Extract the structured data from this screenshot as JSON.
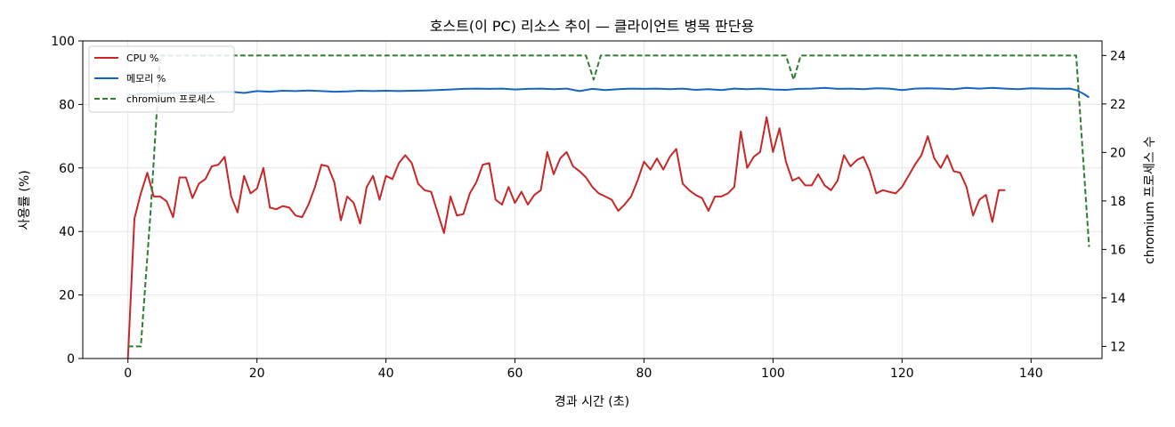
{
  "chart_data": {
    "type": "line",
    "title": "호스트(이 PC) 리소스 추이 — 클라이언트 병목 판단용",
    "xlabel": "경과 시간 (초)",
    "ylabel": "사용률 (%)",
    "y2label": "chromium 프로세스 수",
    "xlim": [
      -7,
      151
    ],
    "ylim": [
      0,
      100
    ],
    "y2lim": [
      11.5,
      24.6
    ],
    "xticks": [
      0,
      20,
      40,
      60,
      80,
      100,
      120,
      140
    ],
    "yticks": [
      0,
      20,
      40,
      60,
      80,
      100
    ],
    "y2ticks": [
      12,
      14,
      16,
      18,
      20,
      22,
      24
    ],
    "grid": true,
    "legend": "top-left",
    "series": [
      {
        "name": "CPU %",
        "axis": "left",
        "color": "#c62828",
        "style": "solid",
        "points": [
          [
            0,
            0
          ],
          [
            1,
            44
          ],
          [
            2,
            52
          ],
          [
            3,
            58.5
          ],
          [
            4,
            51
          ],
          [
            5,
            51
          ],
          [
            6,
            49.5
          ],
          [
            7,
            44.5
          ],
          [
            8,
            57
          ],
          [
            9,
            57
          ],
          [
            10,
            50.5
          ],
          [
            11,
            55
          ],
          [
            12,
            56.5
          ],
          [
            13,
            60.5
          ],
          [
            14,
            61
          ],
          [
            15,
            63.5
          ],
          [
            16,
            51
          ],
          [
            17,
            46
          ],
          [
            18,
            57.5
          ],
          [
            19,
            52
          ],
          [
            20,
            53.5
          ],
          [
            21,
            60
          ],
          [
            22,
            47.5
          ],
          [
            23,
            47
          ],
          [
            24,
            48
          ],
          [
            25,
            47.5
          ],
          [
            26,
            45
          ],
          [
            27,
            44.5
          ],
          [
            28,
            48.5
          ],
          [
            29,
            54
          ],
          [
            30,
            61
          ],
          [
            31,
            60.5
          ],
          [
            32,
            55.5
          ],
          [
            33,
            43.5
          ],
          [
            34,
            51
          ],
          [
            35,
            49
          ],
          [
            36,
            42.5
          ],
          [
            37,
            54
          ],
          [
            38,
            57.5
          ],
          [
            39,
            50
          ],
          [
            40,
            57.5
          ],
          [
            41,
            56.5
          ],
          [
            42,
            61.5
          ],
          [
            43,
            64
          ],
          [
            44,
            61.5
          ],
          [
            45,
            55
          ],
          [
            46,
            53
          ],
          [
            47,
            52.5
          ],
          [
            48,
            46
          ],
          [
            49,
            39.5
          ],
          [
            50,
            51
          ],
          [
            51,
            45
          ],
          [
            52,
            45.5
          ],
          [
            53,
            52
          ],
          [
            54,
            55.5
          ],
          [
            55,
            61
          ],
          [
            56,
            61.5
          ],
          [
            57,
            50
          ],
          [
            58,
            48.5
          ],
          [
            59,
            54
          ],
          [
            60,
            49
          ],
          [
            61,
            52.5
          ],
          [
            62,
            48.5
          ],
          [
            63,
            51.5
          ],
          [
            64,
            53
          ],
          [
            65,
            65
          ],
          [
            66,
            58
          ],
          [
            67,
            63
          ],
          [
            68,
            65
          ],
          [
            69,
            60.5
          ],
          [
            70,
            59
          ],
          [
            71,
            57
          ],
          [
            72,
            54
          ],
          [
            73,
            52
          ],
          [
            74,
            51
          ],
          [
            75,
            50
          ],
          [
            76,
            46.5
          ],
          [
            77,
            48.5
          ],
          [
            78,
            51
          ],
          [
            79,
            56
          ],
          [
            80,
            62
          ],
          [
            81,
            59.5
          ],
          [
            82,
            63
          ],
          [
            83,
            59.5
          ],
          [
            84,
            63.5
          ],
          [
            85,
            66
          ],
          [
            86,
            55
          ],
          [
            87,
            53
          ],
          [
            88,
            51.5
          ],
          [
            89,
            50.5
          ],
          [
            90,
            46.5
          ],
          [
            91,
            51
          ],
          [
            92,
            51
          ],
          [
            93,
            52
          ],
          [
            94,
            54
          ],
          [
            95,
            71.5
          ],
          [
            96,
            60
          ],
          [
            97,
            63.5
          ],
          [
            98,
            65
          ],
          [
            99,
            76
          ],
          [
            100,
            65
          ],
          [
            101,
            72.5
          ],
          [
            102,
            62
          ],
          [
            103,
            56
          ],
          [
            104,
            57
          ],
          [
            105,
            54.5
          ],
          [
            106,
            54.5
          ],
          [
            107,
            58
          ],
          [
            108,
            54.5
          ],
          [
            109,
            53
          ],
          [
            110,
            56
          ],
          [
            111,
            64
          ],
          [
            112,
            60.5
          ],
          [
            113,
            62.5
          ],
          [
            114,
            63.5
          ],
          [
            115,
            59
          ],
          [
            116,
            52
          ],
          [
            117,
            53
          ],
          [
            118,
            52.5
          ],
          [
            119,
            52
          ],
          [
            120,
            54
          ],
          [
            121,
            57.5
          ],
          [
            122,
            61
          ],
          [
            123,
            64
          ],
          [
            124,
            70
          ],
          [
            125,
            63
          ],
          [
            126,
            60
          ],
          [
            127,
            64
          ],
          [
            128,
            59
          ],
          [
            129,
            58.5
          ],
          [
            130,
            54
          ],
          [
            131,
            45
          ],
          [
            132,
            50
          ],
          [
            133,
            51.5
          ],
          [
            134,
            43
          ],
          [
            135,
            53
          ],
          [
            136,
            53
          ]
        ]
      },
      {
        "name": "메모리 %",
        "axis": "left",
        "color": "#1565c0",
        "style": "solid",
        "points": [
          [
            0,
            83
          ],
          [
            2,
            83.2
          ],
          [
            4,
            83.4
          ],
          [
            6,
            83.5
          ],
          [
            8,
            83.6
          ],
          [
            10,
            83.6
          ],
          [
            12,
            83.7
          ],
          [
            14,
            83.9
          ],
          [
            16,
            84
          ],
          [
            18,
            83.6
          ],
          [
            20,
            84.2
          ],
          [
            22,
            84
          ],
          [
            24,
            84.3
          ],
          [
            26,
            84.2
          ],
          [
            28,
            84.4
          ],
          [
            30,
            84.2
          ],
          [
            32,
            84
          ],
          [
            34,
            84.1
          ],
          [
            36,
            84.3
          ],
          [
            38,
            84.2
          ],
          [
            40,
            84.3
          ],
          [
            42,
            84.2
          ],
          [
            44,
            84.3
          ],
          [
            46,
            84.4
          ],
          [
            48,
            84.5
          ],
          [
            50,
            84.7
          ],
          [
            52,
            84.9
          ],
          [
            54,
            85
          ],
          [
            56,
            84.9
          ],
          [
            58,
            85
          ],
          [
            60,
            84.7
          ],
          [
            62,
            84.9
          ],
          [
            64,
            85
          ],
          [
            66,
            84.8
          ],
          [
            68,
            85
          ],
          [
            70,
            84.2
          ],
          [
            72,
            84.9
          ],
          [
            74,
            84.5
          ],
          [
            76,
            84.8
          ],
          [
            78,
            85
          ],
          [
            80,
            84.9
          ],
          [
            82,
            85
          ],
          [
            84,
            84.8
          ],
          [
            86,
            85
          ],
          [
            88,
            84.6
          ],
          [
            90,
            84.8
          ],
          [
            92,
            84.5
          ],
          [
            94,
            85
          ],
          [
            96,
            84.8
          ],
          [
            98,
            85
          ],
          [
            100,
            84.7
          ],
          [
            102,
            84.6
          ],
          [
            104,
            84.9
          ],
          [
            106,
            85
          ],
          [
            108,
            85.2
          ],
          [
            110,
            84.9
          ],
          [
            112,
            85
          ],
          [
            114,
            84.8
          ],
          [
            116,
            85.1
          ],
          [
            118,
            85
          ],
          [
            120,
            84.5
          ],
          [
            122,
            85
          ],
          [
            124,
            85.1
          ],
          [
            126,
            85
          ],
          [
            128,
            84.8
          ],
          [
            130,
            85.2
          ],
          [
            132,
            85
          ],
          [
            134,
            85.2
          ],
          [
            136,
            85
          ],
          [
            138,
            84.8
          ],
          [
            140,
            85.1
          ],
          [
            142,
            85
          ],
          [
            144,
            84.9
          ],
          [
            146,
            85
          ],
          [
            147,
            84.5
          ],
          [
            148,
            83.5
          ],
          [
            149,
            82.2
          ]
        ]
      },
      {
        "name": "chromium 프로세스 수",
        "legend_label": "chromium 프로세스",
        "axis": "right",
        "color": "#2e7d32",
        "style": "dashed",
        "points": [
          [
            0,
            12
          ],
          [
            2,
            12
          ],
          [
            3.5,
            17.5
          ],
          [
            5,
            24
          ],
          [
            71,
            24
          ],
          [
            72.2,
            23
          ],
          [
            73.3,
            24
          ],
          [
            102,
            24
          ],
          [
            103.2,
            23
          ],
          [
            104.3,
            24
          ],
          [
            147,
            24
          ],
          [
            149,
            16.1
          ]
        ]
      }
    ]
  }
}
